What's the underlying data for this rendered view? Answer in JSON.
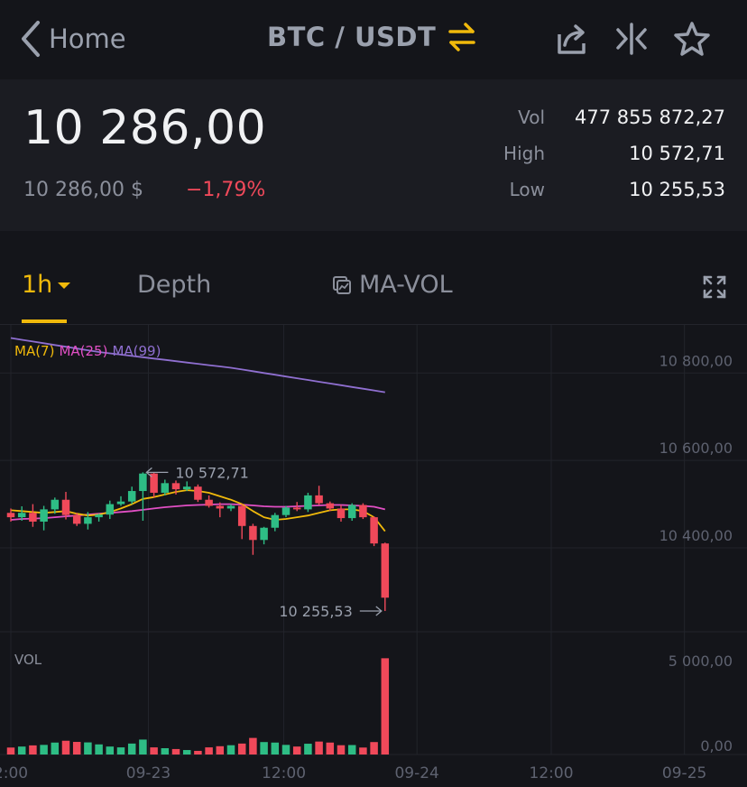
{
  "header": {
    "back_label": "Home",
    "pair": "BTC / USDT"
  },
  "icons": {
    "back": "chevron-left-icon",
    "swap": "swap-arrows-icon",
    "share": "share-icon",
    "compare": "compare-icon",
    "favorite": "star-icon",
    "fullscreen": "expand-icon",
    "indicator": "indicator-icon"
  },
  "colors": {
    "up": "#2ebd85",
    "down": "#f0495a",
    "accent": "#f0b90b",
    "ma7": "#f0b90b",
    "ma25": "#e14fc4",
    "ma99": "#8f6fd0"
  },
  "ticker": {
    "last_price": "10 286,00",
    "last_price_usd": "10 286,00 $",
    "change_pct": "−1,79%",
    "stats": [
      {
        "label": "Vol",
        "value": "477 855 872,27"
      },
      {
        "label": "High",
        "value": "10 572,71"
      },
      {
        "label": "Low",
        "value": "10 255,53"
      }
    ]
  },
  "tabs": {
    "interval": "1h",
    "depth": "Depth",
    "indicator": "MA-VOL"
  },
  "legend": {
    "ma7": "MA(7)",
    "ma25": "MA(25)",
    "ma99": "MA(99)",
    "vol": "VOL"
  },
  "chart_data": {
    "type": "candlestick",
    "interval": "1h",
    "price_axis": {
      "ticks": [
        10400,
        10600,
        10800
      ],
      "tick_labels": [
        "10 400,00",
        "10 600,00",
        "10 800,00"
      ],
      "ylim": [
        10208,
        10910
      ]
    },
    "volume_axis": {
      "ticks": [
        0,
        5000
      ],
      "tick_labels": [
        "0,00",
        "5 000,00"
      ],
      "ylim": [
        0,
        6200
      ]
    },
    "time_axis": {
      "tick_labels": [
        "2:00",
        "09-23",
        "12:00",
        "09-24",
        "12:00",
        "09-25"
      ],
      "tick_index": [
        0,
        12.5,
        24.8,
        36.9,
        49.1,
        61.2
      ]
    },
    "high_marker": {
      "value": 10572.71,
      "label": "10 572,71",
      "index": 12
    },
    "low_marker": {
      "value": 10255.53,
      "label": "10 255,53",
      "index": 34
    },
    "candles": [
      {
        "o": 10480,
        "c": 10470,
        "h": 10490,
        "l": 10460,
        "v": 420
      },
      {
        "o": 10470,
        "c": 10480,
        "h": 10495,
        "l": 10462,
        "v": 480
      },
      {
        "o": 10480,
        "c": 10460,
        "h": 10500,
        "l": 10448,
        "v": 550
      },
      {
        "o": 10460,
        "c": 10488,
        "h": 10496,
        "l": 10440,
        "v": 580
      },
      {
        "o": 10488,
        "c": 10510,
        "h": 10515,
        "l": 10478,
        "v": 720
      },
      {
        "o": 10510,
        "c": 10475,
        "h": 10528,
        "l": 10465,
        "v": 830
      },
      {
        "o": 10475,
        "c": 10455,
        "h": 10480,
        "l": 10450,
        "v": 760
      },
      {
        "o": 10455,
        "c": 10470,
        "h": 10482,
        "l": 10442,
        "v": 730
      },
      {
        "o": 10470,
        "c": 10476,
        "h": 10478,
        "l": 10460,
        "v": 610
      },
      {
        "o": 10476,
        "c": 10500,
        "h": 10508,
        "l": 10466,
        "v": 480
      },
      {
        "o": 10500,
        "c": 10506,
        "h": 10518,
        "l": 10496,
        "v": 430
      },
      {
        "o": 10506,
        "c": 10530,
        "h": 10540,
        "l": 10500,
        "v": 660
      },
      {
        "o": 10530,
        "c": 10570,
        "h": 10572.71,
        "l": 10462,
        "v": 900
      },
      {
        "o": 10570,
        "c": 10526,
        "h": 10572,
        "l": 10515,
        "v": 430
      },
      {
        "o": 10526,
        "c": 10548,
        "h": 10556,
        "l": 10520,
        "v": 380
      },
      {
        "o": 10548,
        "c": 10534,
        "h": 10554,
        "l": 10522,
        "v": 330
      },
      {
        "o": 10534,
        "c": 10540,
        "h": 10552,
        "l": 10530,
        "v": 270
      },
      {
        "o": 10540,
        "c": 10510,
        "h": 10545,
        "l": 10505,
        "v": 220
      },
      {
        "o": 10510,
        "c": 10496,
        "h": 10520,
        "l": 10492,
        "v": 430
      },
      {
        "o": 10496,
        "c": 10490,
        "h": 10504,
        "l": 10470,
        "v": 500
      },
      {
        "o": 10490,
        "c": 10496,
        "h": 10500,
        "l": 10484,
        "v": 560
      },
      {
        "o": 10496,
        "c": 10450,
        "h": 10500,
        "l": 10420,
        "v": 660
      },
      {
        "o": 10450,
        "c": 10418,
        "h": 10455,
        "l": 10384,
        "v": 1000
      },
      {
        "o": 10418,
        "c": 10446,
        "h": 10448,
        "l": 10408,
        "v": 750
      },
      {
        "o": 10446,
        "c": 10475,
        "h": 10480,
        "l": 10438,
        "v": 720
      },
      {
        "o": 10475,
        "c": 10492,
        "h": 10496,
        "l": 10470,
        "v": 580
      },
      {
        "o": 10492,
        "c": 10488,
        "h": 10505,
        "l": 10484,
        "v": 480
      },
      {
        "o": 10488,
        "c": 10520,
        "h": 10526,
        "l": 10482,
        "v": 650
      },
      {
        "o": 10520,
        "c": 10502,
        "h": 10542,
        "l": 10498,
        "v": 780
      },
      {
        "o": 10502,
        "c": 10490,
        "h": 10506,
        "l": 10484,
        "v": 720
      },
      {
        "o": 10490,
        "c": 10468,
        "h": 10498,
        "l": 10460,
        "v": 560
      },
      {
        "o": 10468,
        "c": 10498,
        "h": 10502,
        "l": 10462,
        "v": 570
      },
      {
        "o": 10498,
        "c": 10470,
        "h": 10502,
        "l": 10466,
        "v": 420
      },
      {
        "o": 10470,
        "c": 10410,
        "h": 10472,
        "l": 10404,
        "v": 750
      },
      {
        "o": 10410,
        "c": 10286,
        "h": 10412,
        "l": 10255.53,
        "v": 5800
      }
    ],
    "ma7": [
      10486,
      10484,
      10482,
      10480,
      10482,
      10484,
      10478,
      10474,
      10476,
      10482,
      10490,
      10500,
      10512,
      10516,
      10522,
      10528,
      10532,
      10530,
      10526,
      10518,
      10510,
      10500,
      10484,
      10470,
      10464,
      10466,
      10470,
      10474,
      10480,
      10486,
      10488,
      10488,
      10484,
      10470,
      10438
    ],
    "ma25": [
      10464,
      10466,
      10467,
      10468,
      10470,
      10472,
      10474,
      10476,
      10478,
      10480,
      10482,
      10484,
      10487,
      10490,
      10493,
      10495,
      10497,
      10498,
      10499,
      10500,
      10500,
      10499,
      10497,
      10495,
      10494,
      10494,
      10495,
      10496,
      10497,
      10498,
      10498,
      10497,
      10496,
      10494,
      10488
    ],
    "ma99": [
      10880,
      10876,
      10872,
      10868,
      10864,
      10860,
      10856,
      10852,
      10848,
      10845,
      10842,
      10839,
      10836,
      10833,
      10830,
      10827,
      10824,
      10821,
      10818,
      10815,
      10812,
      10808,
      10804,
      10800,
      10796,
      10792,
      10788,
      10784,
      10780,
      10776,
      10772,
      10768,
      10764,
      10760,
      10756
    ]
  }
}
